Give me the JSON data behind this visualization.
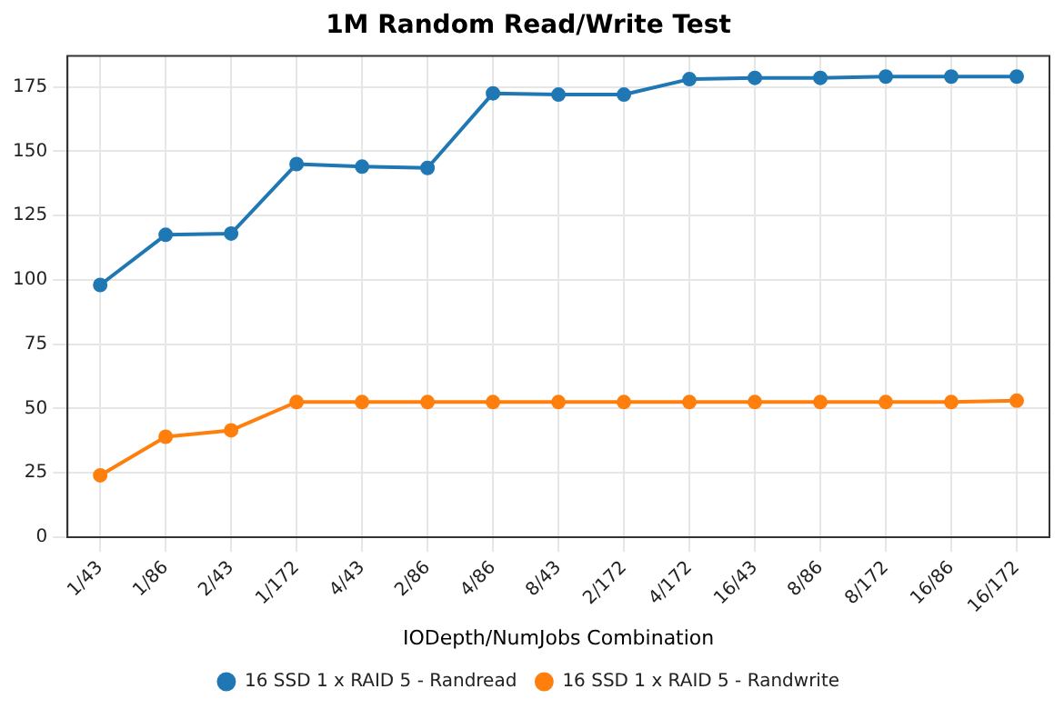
{
  "chart_data": {
    "type": "line",
    "title": "1M Random Read/Write Test",
    "xlabel": "IODepth/NumJobs Combination",
    "categories": [
      "1/43",
      "1/86",
      "2/43",
      "1/172",
      "4/43",
      "2/86",
      "4/86",
      "8/43",
      "2/172",
      "4/172",
      "16/43",
      "8/86",
      "8/172",
      "16/86",
      "16/172"
    ],
    "series": [
      {
        "name": "16 SSD 1 x RAID 5 - Randread",
        "color": "#1f77b4",
        "values": [
          98,
          117.5,
          118,
          145,
          144,
          143.5,
          172.5,
          172,
          172,
          178,
          178.5,
          178.5,
          179,
          179,
          179
        ]
      },
      {
        "name": "16 SSD 1 x RAID 5 - Randwrite",
        "color": "#ff7f0e",
        "values": [
          24,
          39,
          41.5,
          52.5,
          52.5,
          52.5,
          52.5,
          52.5,
          52.5,
          52.5,
          52.5,
          52.5,
          52.5,
          52.5,
          53
        ]
      }
    ],
    "ylim": [
      0,
      187
    ],
    "yticks": [
      0,
      25,
      50,
      75,
      100,
      125,
      150,
      175
    ],
    "grid": true,
    "legend": "bottom",
    "marker": "circle",
    "line_style": "solid"
  }
}
